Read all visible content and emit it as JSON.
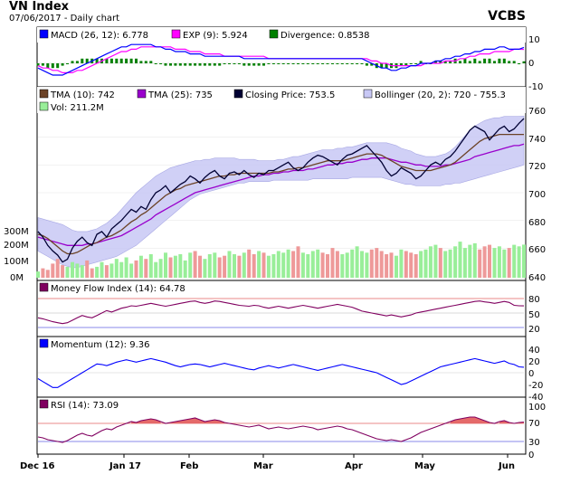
{
  "header": {
    "title": "VN Index",
    "subtitle": "07/06/2017 - Daily chart",
    "brand": "VCBS"
  },
  "colors": {
    "macd": "#0000ff",
    "exp": "#ff00ff",
    "divergence": "#008000",
    "tma10": "#6b4226",
    "tma25": "#9900cc",
    "close": "#000033",
    "bollinger_fill": "#c8c8f5",
    "vol_up": "#99ee99",
    "vol_down": "#ee9999",
    "mfi": "#800060",
    "momentum": "#0000ff",
    "rsi": "#800060"
  },
  "panels": {
    "macd": {
      "legend": [
        "MACD (26, 12): 6.778",
        "EXP (9): 5.924",
        "Divergence: 0.8538"
      ],
      "ticks": [
        "10",
        "0",
        "-10"
      ]
    },
    "price": {
      "legend_row1": [
        "TMA (10): 742",
        "TMA (25): 735",
        "Closing Price: 753.5",
        "Bollinger (20, 2): 720 - 755.3"
      ],
      "legend_row2": [
        "Vol: 211.2M"
      ],
      "ticks": [
        "760",
        "740",
        "720",
        "700",
        "680",
        "660",
        "640"
      ],
      "vol_ticks": [
        "300M",
        "200M",
        "100M",
        "0M"
      ]
    },
    "mfi": {
      "legend": [
        "Money Flow Index (14): 64.78"
      ],
      "ticks": [
        "80",
        "50",
        "20"
      ]
    },
    "momentum": {
      "legend": [
        "Momentum (12): 9.36"
      ],
      "ticks": [
        "40",
        "20",
        "0",
        "-20",
        "-40"
      ]
    },
    "rsi": {
      "legend": [
        "RSI (14): 73.09"
      ],
      "ticks": [
        "100",
        "70",
        "30",
        "0"
      ]
    }
  },
  "x_axis": [
    "Dec 16",
    "Jan 17",
    "Feb",
    "Mar",
    "Apr",
    "May",
    "Jun"
  ],
  "chart_data": {
    "type": "line",
    "title": "VN Index",
    "x_ticks": [
      "Dec 16",
      "Jan 17",
      "Feb",
      "Mar",
      "Apr",
      "May",
      "Jun"
    ],
    "close": [
      672,
      668,
      662,
      658,
      655,
      650,
      652,
      660,
      665,
      668,
      664,
      662,
      670,
      672,
      668,
      674,
      677,
      680,
      684,
      688,
      686,
      690,
      688,
      695,
      700,
      702,
      705,
      700,
      703,
      706,
      708,
      712,
      710,
      707,
      711,
      714,
      716,
      712,
      710,
      714,
      715,
      713,
      716,
      713,
      711,
      714,
      713,
      716,
      716,
      718,
      720,
      722,
      718,
      716,
      718,
      722,
      725,
      727,
      726,
      724,
      722,
      720,
      724,
      727,
      728,
      730,
      732,
      734,
      730,
      726,
      722,
      716,
      712,
      714,
      718,
      716,
      714,
      710,
      712,
      716,
      720,
      722,
      720,
      724,
      726,
      730,
      735,
      740,
      745,
      748,
      746,
      744,
      738,
      742,
      746,
      748,
      744,
      746,
      750,
      753.5
    ],
    "tma10": [
      670,
      669,
      667,
      664,
      661,
      658,
      656,
      656,
      657,
      659,
      661,
      663,
      664,
      666,
      668,
      669,
      671,
      673,
      676,
      679,
      681,
      684,
      686,
      689,
      692,
      695,
      698,
      700,
      702,
      703,
      705,
      706,
      707,
      708,
      709,
      710,
      711,
      712,
      712,
      713,
      713,
      714,
      714,
      714,
      714,
      714,
      714,
      714,
      715,
      715,
      716,
      717,
      717,
      718,
      718,
      719,
      720,
      721,
      722,
      723,
      723,
      723,
      723,
      724,
      725,
      726,
      727,
      728,
      728,
      728,
      727,
      725,
      723,
      721,
      719,
      718,
      717,
      716,
      716,
      716,
      716,
      717,
      718,
      719,
      720,
      722,
      725,
      728,
      731,
      734,
      737,
      739,
      740,
      741,
      742,
      742,
      742,
      742,
      742,
      742
    ],
    "tma25": [
      668,
      667,
      666,
      665,
      664,
      663,
      662,
      662,
      662,
      662,
      663,
      663,
      664,
      665,
      666,
      667,
      668,
      669,
      671,
      673,
      675,
      677,
      679,
      681,
      684,
      686,
      688,
      690,
      692,
      694,
      696,
      698,
      700,
      701,
      702,
      703,
      704,
      705,
      706,
      707,
      708,
      709,
      710,
      711,
      712,
      712,
      713,
      713,
      714,
      714,
      715,
      715,
      716,
      716,
      716,
      717,
      717,
      718,
      719,
      720,
      720,
      721,
      721,
      722,
      722,
      723,
      724,
      724,
      725,
      725,
      725,
      725,
      724,
      723,
      722,
      722,
      721,
      720,
      720,
      719,
      719,
      719,
      719,
      720,
      720,
      721,
      722,
      723,
      724,
      726,
      727,
      728,
      729,
      730,
      731,
      732,
      733,
      734,
      734,
      735
    ],
    "boll_upper": [
      682,
      681,
      680,
      679,
      678,
      677,
      675,
      673,
      672,
      672,
      672,
      673,
      674,
      676,
      678,
      681,
      684,
      688,
      692,
      696,
      700,
      703,
      706,
      709,
      712,
      714,
      716,
      718,
      719,
      720,
      721,
      722,
      723,
      723,
      724,
      724,
      725,
      725,
      725,
      725,
      725,
      724,
      724,
      724,
      724,
      723,
      723,
      723,
      723,
      724,
      724,
      725,
      726,
      726,
      727,
      728,
      729,
      730,
      731,
      731,
      731,
      732,
      732,
      733,
      733,
      734,
      735,
      736,
      736,
      736,
      736,
      736,
      735,
      734,
      732,
      731,
      730,
      728,
      727,
      726,
      726,
      726,
      727,
      728,
      730,
      733,
      737,
      741,
      745,
      748,
      750,
      752,
      753,
      754,
      754,
      755,
      755,
      755,
      755,
      755.3
    ],
    "boll_lower": [
      658,
      656,
      654,
      652,
      650,
      648,
      647,
      646,
      646,
      647,
      648,
      649,
      650,
      651,
      652,
      653,
      654,
      656,
      658,
      660,
      662,
      665,
      668,
      671,
      674,
      677,
      680,
      683,
      686,
      689,
      692,
      695,
      697,
      699,
      700,
      701,
      702,
      703,
      704,
      705,
      706,
      707,
      707,
      708,
      708,
      708,
      708,
      708,
      709,
      709,
      709,
      709,
      709,
      709,
      709,
      709,
      710,
      710,
      710,
      710,
      710,
      710,
      710,
      710,
      711,
      711,
      711,
      711,
      711,
      711,
      711,
      710,
      709,
      708,
      707,
      706,
      706,
      705,
      705,
      705,
      705,
      705,
      705,
      706,
      706,
      707,
      707,
      708,
      709,
      710,
      711,
      712,
      713,
      714,
      715,
      716,
      717,
      718,
      719,
      720
    ],
    "volume_m": [
      40,
      60,
      50,
      90,
      120,
      80,
      70,
      100,
      90,
      80,
      110,
      60,
      70,
      100,
      80,
      90,
      120,
      100,
      130,
      90,
      110,
      140,
      120,
      150,
      100,
      120,
      160,
      130,
      140,
      150,
      110,
      160,
      170,
      140,
      120,
      150,
      160,
      130,
      140,
      170,
      150,
      140,
      160,
      180,
      150,
      170,
      160,
      140,
      150,
      170,
      160,
      180,
      170,
      200,
      160,
      150,
      170,
      180,
      160,
      150,
      190,
      170,
      150,
      160,
      180,
      200,
      170,
      160,
      180,
      190,
      170,
      150,
      160,
      140,
      180,
      170,
      160,
      150,
      170,
      180,
      200,
      210,
      190,
      170,
      180,
      200,
      230,
      190,
      210,
      220,
      180,
      200,
      210,
      190,
      200,
      180,
      190,
      210,
      200,
      211.2
    ],
    "volume_up": [
      1,
      0,
      0,
      0,
      0,
      0,
      1,
      1,
      1,
      1,
      0,
      0,
      1,
      1,
      0,
      1,
      1,
      1,
      1,
      1,
      0,
      1,
      0,
      1,
      1,
      1,
      1,
      0,
      1,
      1,
      1,
      1,
      0,
      0,
      1,
      1,
      1,
      0,
      0,
      1,
      1,
      0,
      1,
      0,
      0,
      1,
      0,
      1,
      1,
      1,
      1,
      1,
      0,
      0,
      1,
      1,
      1,
      1,
      0,
      0,
      0,
      0,
      1,
      1,
      1,
      1,
      1,
      1,
      0,
      0,
      0,
      0,
      0,
      1,
      1,
      0,
      0,
      0,
      1,
      1,
      1,
      1,
      0,
      1,
      1,
      1,
      1,
      1,
      1,
      1,
      0,
      0,
      0,
      1,
      1,
      1,
      0,
      1,
      1,
      1
    ],
    "macd": [
      -2,
      -3,
      -4,
      -5,
      -5,
      -5,
      -4,
      -3,
      -2,
      -1,
      0,
      1,
      2,
      3,
      4,
      5,
      6,
      7,
      7,
      8,
      8,
      8,
      8,
      8,
      7,
      7,
      6,
      6,
      5,
      5,
      5,
      4,
      4,
      4,
      3,
      3,
      3,
      3,
      3,
      3,
      3,
      3,
      2,
      2,
      2,
      2,
      2,
      2,
      2,
      2,
      2,
      2,
      2,
      2,
      2,
      2,
      2,
      2,
      2,
      2,
      2,
      2,
      2,
      2,
      2,
      2,
      2,
      1,
      0,
      -1,
      -2,
      -2,
      -3,
      -3,
      -2,
      -2,
      -1,
      -1,
      0,
      0,
      0,
      1,
      1,
      2,
      2,
      3,
      3,
      4,
      4,
      5,
      5,
      6,
      6,
      6,
      7,
      7,
      6,
      6,
      6,
      6.778
    ],
    "exp": [
      -1,
      -2,
      -2,
      -3,
      -3,
      -4,
      -4,
      -4,
      -3,
      -3,
      -2,
      -1,
      0,
      1,
      2,
      3,
      4,
      5,
      5,
      6,
      6,
      7,
      7,
      7,
      7,
      7,
      7,
      7,
      6,
      6,
      6,
      5,
      5,
      5,
      4,
      4,
      4,
      4,
      3,
      3,
      3,
      3,
      3,
      3,
      3,
      3,
      3,
      2,
      2,
      2,
      2,
      2,
      2,
      2,
      2,
      2,
      2,
      2,
      2,
      2,
      2,
      2,
      2,
      2,
      2,
      2,
      2,
      2,
      1,
      1,
      0,
      0,
      -1,
      -1,
      -1,
      -1,
      -1,
      -1,
      -1,
      0,
      0,
      0,
      0,
      1,
      1,
      1,
      2,
      2,
      3,
      3,
      4,
      4,
      4,
      5,
      5,
      5,
      5,
      6,
      6,
      5.924
    ],
    "divergence": [
      -1,
      -1,
      -2,
      -2,
      -2,
      -1,
      0,
      1,
      1,
      2,
      2,
      2,
      2,
      2,
      2,
      2,
      2,
      2,
      2,
      2,
      2,
      1,
      1,
      1,
      0,
      0,
      -1,
      -1,
      -1,
      -1,
      -1,
      -1,
      -1,
      -1,
      -1,
      -1,
      -1,
      -1,
      0,
      0,
      0,
      0,
      -1,
      -1,
      -1,
      -1,
      -1,
      0,
      0,
      0,
      0,
      0,
      0,
      0,
      0,
      0,
      0,
      0,
      0,
      0,
      0,
      0,
      0,
      0,
      0,
      0,
      0,
      -1,
      -1,
      -2,
      -2,
      -2,
      -2,
      -2,
      -1,
      -1,
      0,
      0,
      1,
      0,
      0,
      1,
      1,
      1,
      1,
      2,
      1,
      2,
      1,
      2,
      1,
      2,
      2,
      1,
      2,
      2,
      1,
      1,
      0,
      0.8538
    ],
    "mfi": [
      40,
      38,
      35,
      32,
      30,
      28,
      30,
      35,
      40,
      45,
      42,
      40,
      45,
      50,
      55,
      52,
      56,
      60,
      62,
      65,
      64,
      66,
      68,
      70,
      68,
      66,
      64,
      66,
      68,
      70,
      72,
      74,
      75,
      72,
      70,
      72,
      75,
      74,
      72,
      70,
      68,
      66,
      65,
      64,
      66,
      65,
      62,
      60,
      62,
      64,
      62,
      60,
      62,
      64,
      66,
      64,
      62,
      60,
      62,
      64,
      66,
      68,
      66,
      64,
      62,
      58,
      54,
      52,
      50,
      48,
      46,
      44,
      46,
      44,
      42,
      44,
      46,
      50,
      52,
      54,
      56,
      58,
      60,
      62,
      64,
      66,
      68,
      70,
      72,
      74,
      75,
      73,
      72,
      70,
      72,
      74,
      72,
      66,
      65,
      64.78
    ],
    "momentum": [
      -10,
      -15,
      -20,
      -25,
      -25,
      -20,
      -15,
      -10,
      -5,
      0,
      5,
      10,
      15,
      14,
      12,
      15,
      18,
      20,
      22,
      20,
      18,
      20,
      22,
      24,
      22,
      20,
      18,
      15,
      12,
      10,
      12,
      14,
      15,
      14,
      12,
      10,
      12,
      14,
      16,
      14,
      12,
      10,
      8,
      6,
      5,
      8,
      10,
      12,
      10,
      8,
      10,
      12,
      14,
      12,
      10,
      8,
      6,
      4,
      6,
      8,
      10,
      12,
      14,
      12,
      10,
      8,
      6,
      4,
      2,
      0,
      -4,
      -8,
      -12,
      -16,
      -20,
      -18,
      -14,
      -10,
      -6,
      -2,
      2,
      6,
      10,
      12,
      14,
      16,
      18,
      20,
      22,
      24,
      22,
      20,
      18,
      16,
      18,
      20,
      16,
      14,
      10,
      9.36
    ],
    "rsi": [
      40,
      38,
      34,
      32,
      30,
      28,
      32,
      38,
      44,
      48,
      44,
      42,
      48,
      54,
      58,
      56,
      62,
      66,
      70,
      74,
      72,
      76,
      78,
      80,
      78,
      74,
      70,
      72,
      74,
      76,
      78,
      80,
      82,
      78,
      74,
      76,
      78,
      76,
      72,
      70,
      68,
      66,
      64,
      62,
      64,
      66,
      62,
      58,
      60,
      62,
      60,
      58,
      60,
      62,
      64,
      62,
      60,
      56,
      58,
      60,
      62,
      64,
      62,
      58,
      56,
      52,
      48,
      44,
      40,
      36,
      34,
      32,
      34,
      32,
      30,
      34,
      38,
      44,
      50,
      54,
      58,
      62,
      66,
      70,
      74,
      78,
      80,
      82,
      84,
      84,
      80,
      76,
      72,
      70,
      74,
      76,
      72,
      70,
      72,
      73.09
    ]
  }
}
